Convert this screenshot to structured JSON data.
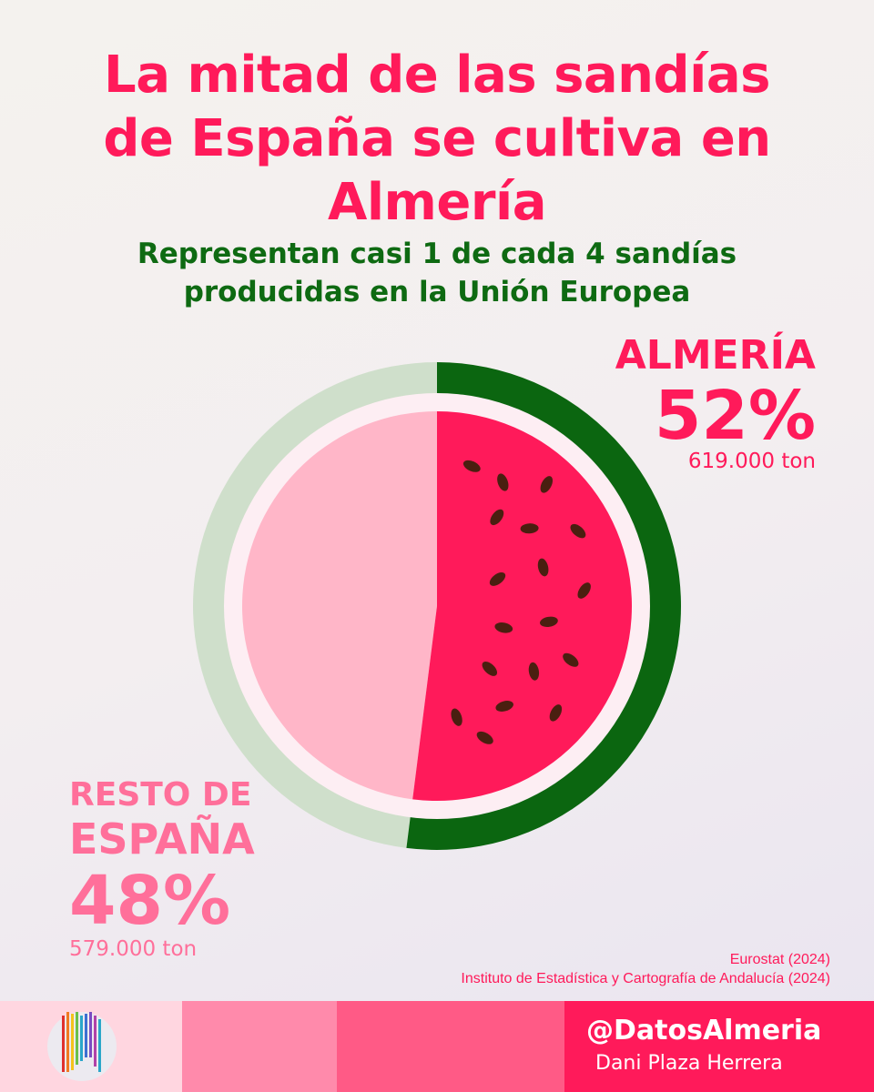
{
  "header": {
    "title_line1": "La mitad de las sandías",
    "title_line2": "de España se cultiva en",
    "title_line3": "Almería",
    "subtitle_line1": "Representan casi 1 de cada 4 sandías",
    "subtitle_line2": "producidas en la Unión Europea"
  },
  "chart_data": {
    "type": "pie",
    "categories": [
      "Almería",
      "Resto de España"
    ],
    "values": [
      52,
      48
    ],
    "tonnes": [
      "619.000 ton",
      "579.000 ton"
    ],
    "colors": {
      "almeria_fill": "#ff1a5a",
      "almeria_ring": "#0b6610",
      "resto_fill": "#ffb6c8",
      "resto_ring": "#cfdfcb",
      "inner_ring": "#fdeef3",
      "seeds": "#4a1f10"
    }
  },
  "labels": {
    "almeria_name": "ALMERÍA",
    "almeria_pct": "52%",
    "almeria_ton": "619.000 ton",
    "resto_name_line1": "RESTO DE",
    "resto_name_line2": "ESPAÑA",
    "resto_pct": "48%",
    "resto_ton": "579.000 ton"
  },
  "sources": {
    "line1": "Eurostat (2024)",
    "line2": "Instituto de Estadística y Cartografía de Andalucía (2024)"
  },
  "footer": {
    "handle": "@DatosAlmeria",
    "author": "Dani Plaza Herrera"
  }
}
